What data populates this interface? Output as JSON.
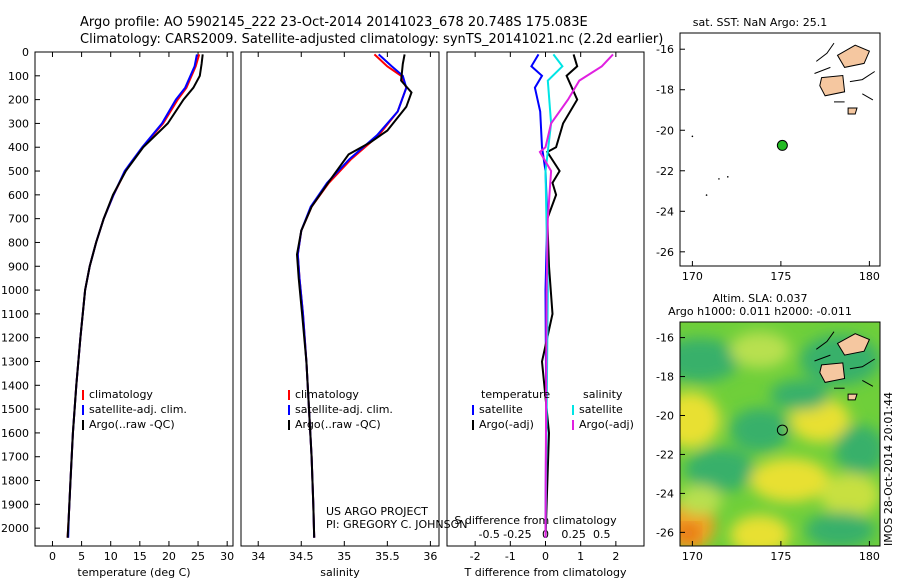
{
  "header": {
    "line1": "Argo profile: AO 5902145_222 23-Oct-2014 20141023_678 20.748S 175.083E",
    "line2": "Climatology: CARS2009. Satellite-adjusted climatology: synTS_20141021.nc (2.2d earlier)"
  },
  "side_label": "IMOS 28-Oct-2014 20:01:44",
  "credit": {
    "line1": "US ARGO PROJECT",
    "line2": "PI: GREGORY C. JOHNSON"
  },
  "colors": {
    "climatology": "#ff0000",
    "satellite": "#0000ff",
    "argo": "#000000",
    "sat_sal": "#00e5e5",
    "argo_sal": "#e020e0",
    "land": "#f5c7a0",
    "float_green": "#22bb22"
  },
  "chart_data": [
    {
      "id": "temperature",
      "type": "line",
      "xlabel": "temperature (deg C)",
      "ylabel": "",
      "xlim": [
        -3,
        31
      ],
      "ylim": [
        0,
        2075
      ],
      "xticks": [
        0,
        5,
        10,
        15,
        20,
        25,
        30
      ],
      "yticks": [
        0,
        100,
        200,
        300,
        400,
        500,
        600,
        700,
        800,
        900,
        1000,
        1100,
        1200,
        1300,
        1400,
        1500,
        1600,
        1700,
        1800,
        1900,
        2000
      ],
      "legend": [
        "climatology",
        "satellite-adj. clim.",
        "Argo(..raw -QC)"
      ],
      "series": [
        {
          "name": "climatology",
          "color": "#ff0000",
          "points": [
            [
              25.2,
              10
            ],
            [
              24.6,
              60
            ],
            [
              23,
              150
            ],
            [
              21.5,
              200
            ],
            [
              19,
              300
            ],
            [
              15.5,
              400
            ],
            [
              12.5,
              500
            ],
            [
              10.5,
              600
            ],
            [
              8.8,
              700
            ],
            [
              7.5,
              800
            ],
            [
              6.4,
              900
            ],
            [
              5.6,
              1000
            ],
            [
              4.8,
              1200
            ],
            [
              4.1,
              1400
            ],
            [
              3.5,
              1600
            ],
            [
              3.1,
              1800
            ],
            [
              2.8,
              1950
            ],
            [
              2.6,
              2040
            ]
          ]
        },
        {
          "name": "satellite",
          "color": "#0000ff",
          "points": [
            [
              24.8,
              10
            ],
            [
              24.4,
              60
            ],
            [
              22.8,
              150
            ],
            [
              21.2,
              200
            ],
            [
              18.8,
              300
            ],
            [
              15.4,
              400
            ],
            [
              12.4,
              500
            ],
            [
              10.5,
              600
            ],
            [
              8.8,
              700
            ],
            [
              7.5,
              800
            ],
            [
              6.4,
              900
            ],
            [
              5.6,
              1000
            ],
            [
              4.8,
              1200
            ],
            [
              4.1,
              1400
            ],
            [
              3.5,
              1600
            ],
            [
              3.1,
              1800
            ],
            [
              2.8,
              1950
            ],
            [
              2.7,
              2040
            ]
          ]
        },
        {
          "name": "Argo",
          "color": "#000000",
          "points": [
            [
              25.8,
              10
            ],
            [
              25.6,
              50
            ],
            [
              25.3,
              100
            ],
            [
              24.2,
              150
            ],
            [
              22.5,
              200
            ],
            [
              19.8,
              300
            ],
            [
              15.6,
              400
            ],
            [
              12.6,
              500
            ],
            [
              10.4,
              600
            ],
            [
              8.8,
              700
            ],
            [
              7.5,
              800
            ],
            [
              6.4,
              900
            ],
            [
              5.6,
              1000
            ],
            [
              4.8,
              1200
            ],
            [
              4.1,
              1400
            ],
            [
              3.5,
              1600
            ],
            [
              3.1,
              1800
            ],
            [
              2.8,
              1950
            ],
            [
              2.6,
              2040
            ]
          ]
        }
      ]
    },
    {
      "id": "salinity",
      "type": "line",
      "xlabel": "salinity",
      "xlim": [
        33.8,
        36.1
      ],
      "ylim": [
        0,
        2075
      ],
      "xticks": [
        34,
        34.5,
        35,
        35.5,
        36
      ],
      "xticklabels": [
        "34",
        "34.5",
        "35",
        "35.5",
        "36"
      ],
      "legend": [
        "climatology",
        "satellite-adj. clim.",
        "Argo(..raw -QC)"
      ],
      "series": [
        {
          "name": "climatology",
          "color": "#ff0000",
          "points": [
            [
              35.35,
              10
            ],
            [
              35.5,
              60
            ],
            [
              35.66,
              100
            ],
            [
              35.72,
              150
            ],
            [
              35.62,
              250
            ],
            [
              35.4,
              350
            ],
            [
              35.08,
              450
            ],
            [
              34.82,
              550
            ],
            [
              34.62,
              650
            ],
            [
              34.5,
              750
            ],
            [
              34.46,
              850
            ],
            [
              34.48,
              950
            ],
            [
              34.52,
              1100
            ],
            [
              34.56,
              1300
            ],
            [
              34.59,
              1500
            ],
            [
              34.62,
              1700
            ],
            [
              34.64,
              1900
            ],
            [
              34.65,
              2040
            ]
          ]
        },
        {
          "name": "satellite",
          "color": "#0000ff",
          "points": [
            [
              35.4,
              10
            ],
            [
              35.55,
              60
            ],
            [
              35.68,
              100
            ],
            [
              35.72,
              150
            ],
            [
              35.62,
              250
            ],
            [
              35.38,
              350
            ],
            [
              35.06,
              450
            ],
            [
              34.8,
              550
            ],
            [
              34.61,
              650
            ],
            [
              34.5,
              750
            ],
            [
              34.46,
              850
            ],
            [
              34.48,
              950
            ],
            [
              34.52,
              1100
            ],
            [
              34.56,
              1300
            ],
            [
              34.59,
              1500
            ],
            [
              34.62,
              1700
            ],
            [
              34.64,
              1900
            ],
            [
              34.65,
              2040
            ]
          ]
        },
        {
          "name": "Argo",
          "color": "#000000",
          "points": [
            [
              35.7,
              10
            ],
            [
              35.68,
              50
            ],
            [
              35.66,
              120
            ],
            [
              35.78,
              170
            ],
            [
              35.72,
              230
            ],
            [
              35.5,
              330
            ],
            [
              35.3,
              380
            ],
            [
              35.05,
              430
            ],
            [
              34.85,
              530
            ],
            [
              34.62,
              650
            ],
            [
              34.5,
              750
            ],
            [
              34.45,
              850
            ],
            [
              34.47,
              950
            ],
            [
              34.51,
              1100
            ],
            [
              34.56,
              1300
            ],
            [
              34.59,
              1500
            ],
            [
              34.62,
              1700
            ],
            [
              34.64,
              1900
            ],
            [
              34.65,
              2040
            ]
          ]
        }
      ]
    },
    {
      "id": "difference",
      "type": "line",
      "xlabel": "T difference from climatology",
      "xlabel_top": "S difference from climatology",
      "xlim": [
        -2.8,
        2.8
      ],
      "ylim": [
        0,
        2075
      ],
      "xticks": [
        -2,
        -1,
        0,
        1,
        2
      ],
      "xticklabels": [
        "-2",
        "-1",
        "0",
        "1",
        "2"
      ],
      "sticks": [
        -0.5,
        -0.25,
        0,
        0.25,
        0.5
      ],
      "sticklabels": [
        "-0.5",
        "-0.25",
        "0",
        "0.25",
        "0.5"
      ],
      "legend_headers": [
        "temperature",
        "salinity"
      ],
      "legend": [
        "satellite",
        "Argo(-adj)",
        "satellite",
        "Argo(-adj)"
      ],
      "series": [
        {
          "name": "T satellite",
          "color": "#0000ff",
          "points": [
            [
              -0.2,
              10
            ],
            [
              -0.4,
              60
            ],
            [
              -0.1,
              100
            ],
            [
              -0.3,
              150
            ],
            [
              -0.15,
              250
            ],
            [
              -0.1,
              400
            ],
            [
              0,
              500
            ],
            [
              0.05,
              700
            ],
            [
              0,
              1000
            ],
            [
              0.02,
              1500
            ],
            [
              0,
              2040
            ]
          ]
        },
        {
          "name": "T Argo",
          "color": "#000000",
          "points": [
            [
              0.8,
              10
            ],
            [
              0.9,
              60
            ],
            [
              0.6,
              100
            ],
            [
              0.9,
              200
            ],
            [
              0.5,
              300
            ],
            [
              0.3,
              400
            ],
            [
              0.05,
              420
            ],
            [
              0.4,
              500
            ],
            [
              0.2,
              550
            ],
            [
              0.3,
              600
            ],
            [
              0.05,
              700
            ],
            [
              0.1,
              900
            ],
            [
              0.2,
              1100
            ],
            [
              -0.1,
              1300
            ],
            [
              0.1,
              1600
            ],
            [
              0,
              2040
            ]
          ]
        },
        {
          "name": "S satellite",
          "color": "#00e5e5",
          "points": [
            [
              0.07,
              10
            ],
            [
              0.15,
              60
            ],
            [
              0.02,
              120
            ],
            [
              0.05,
              300
            ],
            [
              0,
              500
            ],
            [
              0.02,
              1000
            ],
            [
              0,
              2040
            ]
          ]
        },
        {
          "name": "S Argo",
          "color": "#e020e0",
          "points": [
            [
              0.6,
              10
            ],
            [
              0.5,
              60
            ],
            [
              0.3,
              120
            ],
            [
              0.2,
              200
            ],
            [
              0.05,
              300
            ],
            [
              0,
              400
            ],
            [
              -0.05,
              420
            ],
            [
              0.05,
              500
            ],
            [
              0.02,
              700
            ],
            [
              0.01,
              1000
            ],
            [
              0,
              2040
            ]
          ]
        }
      ]
    },
    {
      "id": "map_sst",
      "type": "scatter",
      "title": "sat. SST: NaN Argo: 25.1",
      "xlim": [
        169.3,
        180.6
      ],
      "ylim": [
        -26.7,
        -15.2
      ],
      "xticks": [
        170,
        175,
        180
      ],
      "yticks": [
        -16,
        -18,
        -20,
        -22,
        -24,
        -26
      ],
      "float": {
        "lon": 175.083,
        "lat": -20.748
      }
    },
    {
      "id": "map_sla",
      "type": "heatmap",
      "title1": "Altim. SLA: 0.037",
      "title2": "Argo h1000: 0.011 h2000: -0.011",
      "xlim": [
        169.3,
        180.6
      ],
      "ylim": [
        -26.7,
        -15.2
      ],
      "xticks": [
        170,
        175,
        180
      ],
      "yticks": [
        -16,
        -18,
        -20,
        -22,
        -24,
        -26
      ],
      "float": {
        "lon": 175.083,
        "lat": -20.748
      }
    }
  ]
}
